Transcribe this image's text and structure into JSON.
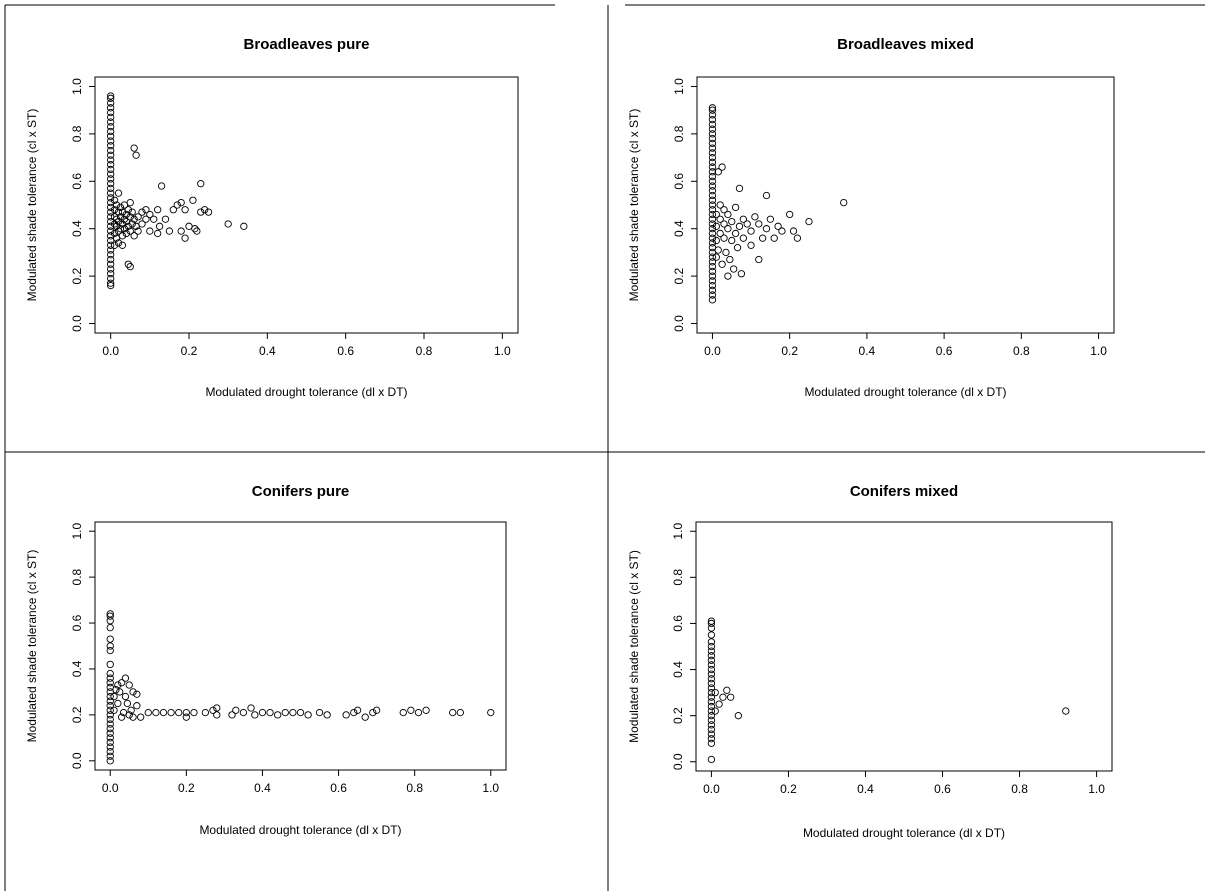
{
  "chart_data": [
    {
      "type": "scatter",
      "title": "Broadleaves pure",
      "xlabel": "Modulated drought tolerance (dl x DT)",
      "ylabel": "Modulated shade tolerance (cl x ST)",
      "xlim": [
        0,
        1
      ],
      "ylim": [
        0,
        1
      ],
      "xticks": [
        "0.0",
        "0.2",
        "0.4",
        "0.6",
        "0.8",
        "1.0"
      ],
      "yticks": [
        "0.0",
        "0.2",
        "0.4",
        "0.6",
        "0.8",
        "1.0"
      ],
      "grid": false,
      "points": [
        [
          0.0,
          0.16
        ],
        [
          0.0,
          0.17
        ],
        [
          0.0,
          0.19
        ],
        [
          0.0,
          0.21
        ],
        [
          0.0,
          0.23
        ],
        [
          0.0,
          0.25
        ],
        [
          0.0,
          0.27
        ],
        [
          0.0,
          0.29
        ],
        [
          0.0,
          0.31
        ],
        [
          0.0,
          0.33
        ],
        [
          0.0,
          0.35
        ],
        [
          0.0,
          0.37
        ],
        [
          0.0,
          0.39
        ],
        [
          0.0,
          0.41
        ],
        [
          0.0,
          0.43
        ],
        [
          0.0,
          0.45
        ],
        [
          0.0,
          0.47
        ],
        [
          0.0,
          0.49
        ],
        [
          0.0,
          0.51
        ],
        [
          0.0,
          0.53
        ],
        [
          0.0,
          0.55
        ],
        [
          0.0,
          0.57
        ],
        [
          0.0,
          0.59
        ],
        [
          0.0,
          0.61
        ],
        [
          0.0,
          0.63
        ],
        [
          0.0,
          0.65
        ],
        [
          0.0,
          0.67
        ],
        [
          0.0,
          0.69
        ],
        [
          0.0,
          0.71
        ],
        [
          0.0,
          0.73
        ],
        [
          0.0,
          0.75
        ],
        [
          0.0,
          0.77
        ],
        [
          0.0,
          0.79
        ],
        [
          0.0,
          0.81
        ],
        [
          0.0,
          0.83
        ],
        [
          0.0,
          0.85
        ],
        [
          0.0,
          0.87
        ],
        [
          0.0,
          0.89
        ],
        [
          0.0,
          0.91
        ],
        [
          0.0,
          0.93
        ],
        [
          0.0,
          0.95
        ],
        [
          0.0,
          0.96
        ],
        [
          0.01,
          0.33
        ],
        [
          0.01,
          0.38
        ],
        [
          0.01,
          0.42
        ],
        [
          0.01,
          0.45
        ],
        [
          0.01,
          0.48
        ],
        [
          0.01,
          0.52
        ],
        [
          0.015,
          0.36
        ],
        [
          0.015,
          0.41
        ],
        [
          0.015,
          0.44
        ],
        [
          0.015,
          0.5
        ],
        [
          0.02,
          0.34
        ],
        [
          0.02,
          0.39
        ],
        [
          0.02,
          0.43
        ],
        [
          0.02,
          0.47
        ],
        [
          0.02,
          0.55
        ],
        [
          0.025,
          0.4
        ],
        [
          0.025,
          0.45
        ],
        [
          0.025,
          0.49
        ],
        [
          0.03,
          0.33
        ],
        [
          0.03,
          0.37
        ],
        [
          0.03,
          0.42
        ],
        [
          0.03,
          0.47
        ],
        [
          0.035,
          0.4
        ],
        [
          0.035,
          0.44
        ],
        [
          0.035,
          0.5
        ],
        [
          0.04,
          0.38
        ],
        [
          0.04,
          0.43
        ],
        [
          0.04,
          0.46
        ],
        [
          0.045,
          0.25
        ],
        [
          0.045,
          0.41
        ],
        [
          0.045,
          0.48
        ],
        [
          0.05,
          0.24
        ],
        [
          0.05,
          0.39
        ],
        [
          0.05,
          0.45
        ],
        [
          0.05,
          0.51
        ],
        [
          0.055,
          0.42
        ],
        [
          0.055,
          0.47
        ],
        [
          0.06,
          0.37
        ],
        [
          0.06,
          0.44
        ],
        [
          0.06,
          0.74
        ],
        [
          0.065,
          0.41
        ],
        [
          0.065,
          0.71
        ],
        [
          0.07,
          0.39
        ],
        [
          0.07,
          0.45
        ],
        [
          0.08,
          0.47
        ],
        [
          0.08,
          0.42
        ],
        [
          0.09,
          0.44
        ],
        [
          0.09,
          0.48
        ],
        [
          0.1,
          0.39
        ],
        [
          0.1,
          0.46
        ],
        [
          0.11,
          0.44
        ],
        [
          0.12,
          0.38
        ],
        [
          0.12,
          0.48
        ],
        [
          0.125,
          0.41
        ],
        [
          0.13,
          0.58
        ],
        [
          0.14,
          0.44
        ],
        [
          0.15,
          0.39
        ],
        [
          0.16,
          0.48
        ],
        [
          0.17,
          0.5
        ],
        [
          0.18,
          0.39
        ],
        [
          0.18,
          0.51
        ],
        [
          0.19,
          0.36
        ],
        [
          0.19,
          0.48
        ],
        [
          0.2,
          0.41
        ],
        [
          0.21,
          0.52
        ],
        [
          0.215,
          0.4
        ],
        [
          0.22,
          0.39
        ],
        [
          0.23,
          0.59
        ],
        [
          0.23,
          0.47
        ],
        [
          0.24,
          0.48
        ],
        [
          0.25,
          0.47
        ],
        [
          0.3,
          0.42
        ],
        [
          0.34,
          0.41
        ]
      ]
    },
    {
      "type": "scatter",
      "title": "Broadleaves mixed",
      "xlabel": "Modulated drought tolerance (dl x DT)",
      "ylabel": "Modulated shade tolerance (cl x ST)",
      "xlim": [
        0,
        1
      ],
      "ylim": [
        0,
        1
      ],
      "xticks": [
        "0.0",
        "0.2",
        "0.4",
        "0.6",
        "0.8",
        "1.0"
      ],
      "yticks": [
        "0.0",
        "0.2",
        "0.4",
        "0.6",
        "0.8",
        "1.0"
      ],
      "grid": false,
      "points": [
        [
          0.0,
          0.1
        ],
        [
          0.0,
          0.12
        ],
        [
          0.0,
          0.14
        ],
        [
          0.0,
          0.16
        ],
        [
          0.0,
          0.18
        ],
        [
          0.0,
          0.2
        ],
        [
          0.0,
          0.22
        ],
        [
          0.0,
          0.24
        ],
        [
          0.0,
          0.26
        ],
        [
          0.0,
          0.28
        ],
        [
          0.0,
          0.3
        ],
        [
          0.0,
          0.32
        ],
        [
          0.0,
          0.34
        ],
        [
          0.0,
          0.36
        ],
        [
          0.0,
          0.38
        ],
        [
          0.0,
          0.4
        ],
        [
          0.0,
          0.42
        ],
        [
          0.0,
          0.44
        ],
        [
          0.0,
          0.46
        ],
        [
          0.0,
          0.48
        ],
        [
          0.0,
          0.5
        ],
        [
          0.0,
          0.52
        ],
        [
          0.0,
          0.54
        ],
        [
          0.0,
          0.56
        ],
        [
          0.0,
          0.58
        ],
        [
          0.0,
          0.6
        ],
        [
          0.0,
          0.62
        ],
        [
          0.0,
          0.64
        ],
        [
          0.0,
          0.66
        ],
        [
          0.0,
          0.68
        ],
        [
          0.0,
          0.7
        ],
        [
          0.0,
          0.72
        ],
        [
          0.0,
          0.74
        ],
        [
          0.0,
          0.76
        ],
        [
          0.0,
          0.78
        ],
        [
          0.0,
          0.8
        ],
        [
          0.0,
          0.82
        ],
        [
          0.0,
          0.84
        ],
        [
          0.0,
          0.86
        ],
        [
          0.0,
          0.88
        ],
        [
          0.0,
          0.9
        ],
        [
          0.0,
          0.91
        ],
        [
          0.01,
          0.28
        ],
        [
          0.01,
          0.35
        ],
        [
          0.01,
          0.41
        ],
        [
          0.01,
          0.46
        ],
        [
          0.015,
          0.64
        ],
        [
          0.015,
          0.31
        ],
        [
          0.02,
          0.38
        ],
        [
          0.02,
          0.44
        ],
        [
          0.02,
          0.5
        ],
        [
          0.025,
          0.25
        ],
        [
          0.025,
          0.66
        ],
        [
          0.03,
          0.36
        ],
        [
          0.03,
          0.42
        ],
        [
          0.03,
          0.48
        ],
        [
          0.035,
          0.3
        ],
        [
          0.04,
          0.2
        ],
        [
          0.04,
          0.4
        ],
        [
          0.04,
          0.46
        ],
        [
          0.045,
          0.27
        ],
        [
          0.05,
          0.35
        ],
        [
          0.05,
          0.43
        ],
        [
          0.055,
          0.23
        ],
        [
          0.06,
          0.38
        ],
        [
          0.06,
          0.49
        ],
        [
          0.065,
          0.32
        ],
        [
          0.07,
          0.41
        ],
        [
          0.07,
          0.57
        ],
        [
          0.075,
          0.21
        ],
        [
          0.08,
          0.44
        ],
        [
          0.08,
          0.36
        ],
        [
          0.09,
          0.42
        ],
        [
          0.1,
          0.33
        ],
        [
          0.1,
          0.39
        ],
        [
          0.11,
          0.45
        ],
        [
          0.12,
          0.27
        ],
        [
          0.12,
          0.42
        ],
        [
          0.13,
          0.36
        ],
        [
          0.14,
          0.54
        ],
        [
          0.14,
          0.4
        ],
        [
          0.15,
          0.44
        ],
        [
          0.16,
          0.36
        ],
        [
          0.17,
          0.41
        ],
        [
          0.18,
          0.39
        ],
        [
          0.2,
          0.46
        ],
        [
          0.21,
          0.39
        ],
        [
          0.22,
          0.36
        ],
        [
          0.25,
          0.43
        ],
        [
          0.34,
          0.51
        ]
      ]
    },
    {
      "type": "scatter",
      "title": "Conifers pure",
      "xlabel": "Modulated drought tolerance (dl x DT)",
      "ylabel": "Modulated shade tolerance (cl x ST)",
      "xlim": [
        0,
        1
      ],
      "ylim": [
        0,
        1
      ],
      "xticks": [
        "0.0",
        "0.2",
        "0.4",
        "0.6",
        "0.8",
        "1.0"
      ],
      "yticks": [
        "0.0",
        "0.2",
        "0.4",
        "0.6",
        "0.8",
        "1.0"
      ],
      "grid": false,
      "points": [
        [
          0.0,
          0.0
        ],
        [
          0.0,
          0.02
        ],
        [
          0.0,
          0.04
        ],
        [
          0.0,
          0.06
        ],
        [
          0.0,
          0.08
        ],
        [
          0.0,
          0.1
        ],
        [
          0.0,
          0.12
        ],
        [
          0.0,
          0.14
        ],
        [
          0.0,
          0.16
        ],
        [
          0.0,
          0.18
        ],
        [
          0.0,
          0.2
        ],
        [
          0.0,
          0.22
        ],
        [
          0.0,
          0.24
        ],
        [
          0.0,
          0.26
        ],
        [
          0.0,
          0.28
        ],
        [
          0.0,
          0.3
        ],
        [
          0.0,
          0.32
        ],
        [
          0.0,
          0.34
        ],
        [
          0.0,
          0.36
        ],
        [
          0.0,
          0.38
        ],
        [
          0.0,
          0.42
        ],
        [
          0.0,
          0.48
        ],
        [
          0.0,
          0.5
        ],
        [
          0.0,
          0.53
        ],
        [
          0.0,
          0.58
        ],
        [
          0.0,
          0.61
        ],
        [
          0.0,
          0.63
        ],
        [
          0.0,
          0.64
        ],
        [
          0.01,
          0.22
        ],
        [
          0.01,
          0.28
        ],
        [
          0.015,
          0.31
        ],
        [
          0.02,
          0.25
        ],
        [
          0.02,
          0.33
        ],
        [
          0.025,
          0.3
        ],
        [
          0.03,
          0.19
        ],
        [
          0.03,
          0.34
        ],
        [
          0.035,
          0.21
        ],
        [
          0.04,
          0.36
        ],
        [
          0.04,
          0.28
        ],
        [
          0.045,
          0.25
        ],
        [
          0.05,
          0.33
        ],
        [
          0.05,
          0.2
        ],
        [
          0.055,
          0.22
        ],
        [
          0.06,
          0.3
        ],
        [
          0.06,
          0.19
        ],
        [
          0.07,
          0.24
        ],
        [
          0.07,
          0.29
        ],
        [
          0.08,
          0.19
        ],
        [
          0.1,
          0.21
        ],
        [
          0.12,
          0.21
        ],
        [
          0.14,
          0.21
        ],
        [
          0.16,
          0.21
        ],
        [
          0.18,
          0.21
        ],
        [
          0.2,
          0.21
        ],
        [
          0.2,
          0.19
        ],
        [
          0.22,
          0.21
        ],
        [
          0.25,
          0.21
        ],
        [
          0.27,
          0.22
        ],
        [
          0.28,
          0.23
        ],
        [
          0.28,
          0.2
        ],
        [
          0.32,
          0.2
        ],
        [
          0.33,
          0.22
        ],
        [
          0.35,
          0.21
        ],
        [
          0.37,
          0.23
        ],
        [
          0.38,
          0.2
        ],
        [
          0.4,
          0.21
        ],
        [
          0.42,
          0.21
        ],
        [
          0.44,
          0.2
        ],
        [
          0.46,
          0.21
        ],
        [
          0.48,
          0.21
        ],
        [
          0.5,
          0.21
        ],
        [
          0.52,
          0.2
        ],
        [
          0.55,
          0.21
        ],
        [
          0.57,
          0.2
        ],
        [
          0.62,
          0.2
        ],
        [
          0.64,
          0.21
        ],
        [
          0.65,
          0.22
        ],
        [
          0.67,
          0.19
        ],
        [
          0.69,
          0.21
        ],
        [
          0.7,
          0.22
        ],
        [
          0.77,
          0.21
        ],
        [
          0.79,
          0.22
        ],
        [
          0.81,
          0.21
        ],
        [
          0.83,
          0.22
        ],
        [
          0.9,
          0.21
        ],
        [
          0.92,
          0.21
        ],
        [
          1.0,
          0.21
        ]
      ]
    },
    {
      "type": "scatter",
      "title": "Conifers mixed",
      "xlabel": "Modulated drought tolerance (dl x DT)",
      "ylabel": "Modulated shade tolerance (cl x ST)",
      "xlim": [
        0,
        1
      ],
      "ylim": [
        0,
        1
      ],
      "xticks": [
        "0.0",
        "0.2",
        "0.4",
        "0.6",
        "0.8",
        "1.0"
      ],
      "yticks": [
        "0.0",
        "0.2",
        "0.4",
        "0.6",
        "0.8",
        "1.0"
      ],
      "grid": false,
      "points": [
        [
          0.0,
          0.01
        ],
        [
          0.0,
          0.08
        ],
        [
          0.0,
          0.1
        ],
        [
          0.0,
          0.12
        ],
        [
          0.0,
          0.14
        ],
        [
          0.0,
          0.16
        ],
        [
          0.0,
          0.18
        ],
        [
          0.0,
          0.2
        ],
        [
          0.0,
          0.22
        ],
        [
          0.0,
          0.24
        ],
        [
          0.0,
          0.26
        ],
        [
          0.0,
          0.28
        ],
        [
          0.0,
          0.3
        ],
        [
          0.0,
          0.32
        ],
        [
          0.0,
          0.34
        ],
        [
          0.0,
          0.36
        ],
        [
          0.0,
          0.38
        ],
        [
          0.0,
          0.4
        ],
        [
          0.0,
          0.42
        ],
        [
          0.0,
          0.44
        ],
        [
          0.0,
          0.46
        ],
        [
          0.0,
          0.48
        ],
        [
          0.0,
          0.5
        ],
        [
          0.0,
          0.52
        ],
        [
          0.0,
          0.55
        ],
        [
          0.0,
          0.58
        ],
        [
          0.0,
          0.6
        ],
        [
          0.0,
          0.61
        ],
        [
          0.01,
          0.22
        ],
        [
          0.01,
          0.3
        ],
        [
          0.02,
          0.25
        ],
        [
          0.03,
          0.28
        ],
        [
          0.04,
          0.31
        ],
        [
          0.05,
          0.28
        ],
        [
          0.07,
          0.2
        ],
        [
          0.92,
          0.22
        ]
      ]
    }
  ]
}
